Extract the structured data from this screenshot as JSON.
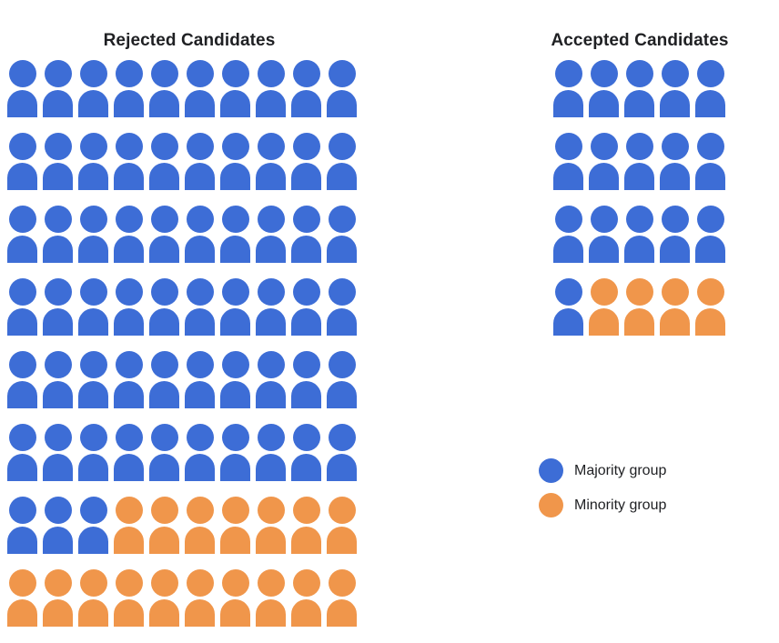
{
  "chart_data": {
    "type": "pictograph",
    "title": "",
    "legend_position": "right-bottom",
    "colors": {
      "majority": "#3d6dd6",
      "minority": "#f0964b"
    },
    "panels": [
      {
        "title": "Rejected Candidates",
        "columns": 10,
        "rows": [
          {
            "majority": 10,
            "minority": 0
          },
          {
            "majority": 10,
            "minority": 0
          },
          {
            "majority": 10,
            "minority": 0
          },
          {
            "majority": 10,
            "minority": 0
          },
          {
            "majority": 10,
            "minority": 0
          },
          {
            "majority": 10,
            "minority": 0
          },
          {
            "majority": 3,
            "minority": 7
          },
          {
            "majority": 0,
            "minority": 10
          }
        ],
        "totals": {
          "majority": 63,
          "minority": 17,
          "all": 80
        }
      },
      {
        "title": "Accepted Candidates",
        "columns": 5,
        "rows": [
          {
            "majority": 5,
            "minority": 0
          },
          {
            "majority": 5,
            "minority": 0
          },
          {
            "majority": 5,
            "minority": 0
          },
          {
            "majority": 1,
            "minority": 4
          }
        ],
        "totals": {
          "majority": 16,
          "minority": 4,
          "all": 20
        }
      }
    ],
    "legend": [
      {
        "label": "Majority group",
        "color": "#3d6dd6",
        "group": "majority"
      },
      {
        "label": "Minority group",
        "color": "#f0964b",
        "group": "minority"
      }
    ]
  }
}
